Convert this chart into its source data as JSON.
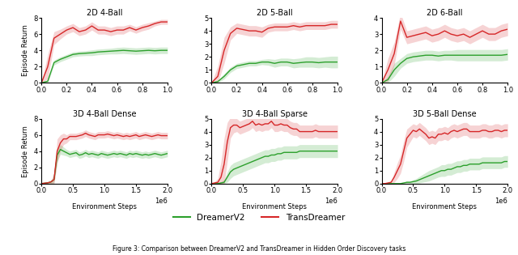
{
  "subplots": [
    {
      "title": "2D 4-Ball",
      "xlim": [
        0.0,
        1000000
      ],
      "ylim": [
        0,
        8
      ],
      "yticks": [
        0,
        2,
        4,
        6,
        8
      ],
      "xticks": [
        0,
        200000,
        400000,
        600000,
        800000,
        1000000
      ],
      "xticklabels": [
        "0.0",
        "0.2",
        "0.4",
        "0.6",
        "0.8",
        "1.0"
      ],
      "xlabel": "",
      "row": 0,
      "col": 0,
      "green_mean": [
        0.0,
        0.2,
        2.5,
        2.9,
        3.2,
        3.5,
        3.6,
        3.65,
        3.7,
        3.8,
        3.85,
        3.9,
        3.95,
        4.0,
        3.95,
        3.9,
        3.95,
        4.0,
        3.95,
        4.0,
        4.0
      ],
      "green_std": [
        0.0,
        0.2,
        0.3,
        0.3,
        0.3,
        0.3,
        0.3,
        0.3,
        0.35,
        0.35,
        0.35,
        0.35,
        0.4,
        0.4,
        0.4,
        0.4,
        0.4,
        0.4,
        0.4,
        0.4,
        0.4
      ],
      "red_mean": [
        0.0,
        2.0,
        5.5,
        6.0,
        6.5,
        6.8,
        6.3,
        6.5,
        7.0,
        6.5,
        6.5,
        6.3,
        6.5,
        6.5,
        6.8,
        6.5,
        6.8,
        7.0,
        7.3,
        7.5,
        7.5
      ],
      "red_std": [
        0.0,
        1.5,
        0.8,
        0.6,
        0.5,
        0.5,
        0.5,
        0.5,
        0.5,
        0.5,
        0.5,
        0.5,
        0.5,
        0.5,
        0.4,
        0.4,
        0.4,
        0.4,
        0.3,
        0.3,
        0.3
      ]
    },
    {
      "title": "2D 5-Ball",
      "xlim": [
        0.0,
        1000000
      ],
      "ylim": [
        0,
        5
      ],
      "yticks": [
        0,
        1,
        2,
        3,
        4,
        5
      ],
      "xticks": [
        0,
        200000,
        400000,
        600000,
        800000,
        1000000
      ],
      "xticklabels": [
        "0.0",
        "0.2",
        "0.4",
        "0.6",
        "0.8",
        "1.0"
      ],
      "xlabel": "",
      "row": 0,
      "col": 1,
      "green_mean": [
        0.0,
        0.1,
        0.5,
        1.0,
        1.3,
        1.4,
        1.5,
        1.5,
        1.6,
        1.6,
        1.5,
        1.6,
        1.6,
        1.5,
        1.55,
        1.6,
        1.6,
        1.55,
        1.6,
        1.6,
        1.6
      ],
      "green_std": [
        0.0,
        0.1,
        0.2,
        0.2,
        0.2,
        0.2,
        0.2,
        0.2,
        0.2,
        0.25,
        0.3,
        0.3,
        0.3,
        0.35,
        0.35,
        0.4,
        0.4,
        0.4,
        0.4,
        0.45,
        0.45
      ],
      "red_mean": [
        0.0,
        0.5,
        2.5,
        3.8,
        4.2,
        4.1,
        4.0,
        4.0,
        3.9,
        4.2,
        4.3,
        4.3,
        4.3,
        4.4,
        4.3,
        4.4,
        4.4,
        4.4,
        4.4,
        4.5,
        4.5
      ],
      "red_std": [
        0.0,
        0.8,
        1.0,
        0.5,
        0.4,
        0.4,
        0.4,
        0.4,
        0.4,
        0.3,
        0.3,
        0.3,
        0.3,
        0.3,
        0.3,
        0.3,
        0.3,
        0.3,
        0.3,
        0.3,
        0.3
      ]
    },
    {
      "title": "2D 6-Ball",
      "xlim": [
        0.0,
        1000000
      ],
      "ylim": [
        0,
        4
      ],
      "yticks": [
        0,
        1,
        2,
        3,
        4
      ],
      "xticks": [
        0,
        200000,
        400000,
        600000,
        800000,
        1000000
      ],
      "xticklabels": [
        "0.0",
        "0.2",
        "0.4",
        "0.6",
        "0.8",
        "1.0"
      ],
      "xlabel": "",
      "row": 0,
      "col": 2,
      "green_mean": [
        0.0,
        0.2,
        0.8,
        1.2,
        1.5,
        1.6,
        1.65,
        1.7,
        1.7,
        1.65,
        1.7,
        1.7,
        1.7,
        1.7,
        1.7,
        1.7,
        1.7,
        1.7,
        1.7,
        1.7,
        1.75
      ],
      "green_std": [
        0.0,
        0.2,
        0.4,
        0.3,
        0.3,
        0.3,
        0.3,
        0.3,
        0.3,
        0.3,
        0.3,
        0.3,
        0.35,
        0.35,
        0.35,
        0.35,
        0.35,
        0.35,
        0.35,
        0.35,
        0.35
      ],
      "red_mean": [
        0.0,
        0.8,
        1.8,
        3.8,
        2.8,
        2.9,
        3.0,
        3.1,
        2.9,
        3.0,
        3.2,
        3.0,
        2.9,
        3.0,
        2.8,
        3.0,
        3.2,
        3.0,
        3.0,
        3.2,
        3.3
      ],
      "red_std": [
        0.0,
        0.7,
        0.7,
        0.5,
        0.4,
        0.4,
        0.4,
        0.4,
        0.4,
        0.4,
        0.4,
        0.4,
        0.4,
        0.4,
        0.4,
        0.4,
        0.4,
        0.4,
        0.4,
        0.4,
        0.4
      ]
    },
    {
      "title": "3D 4-Ball Dense",
      "xlim": [
        0.0,
        2000000
      ],
      "ylim": [
        0,
        8
      ],
      "yticks": [
        0,
        2,
        4,
        6,
        8
      ],
      "xticks": [
        0,
        500000,
        1000000,
        1500000,
        2000000
      ],
      "xticklabels": [
        "0.0",
        "0.5",
        "1.0",
        "1.5",
        "2.0"
      ],
      "xlabel": "Environment Steps",
      "row": 1,
      "col": 0,
      "green_mean": [
        0.0,
        0.05,
        0.1,
        0.2,
        0.5,
        3.5,
        4.2,
        4.0,
        3.8,
        3.6,
        3.7,
        3.8,
        3.5,
        3.6,
        3.8,
        3.6,
        3.7,
        3.6,
        3.5,
        3.7,
        3.6,
        3.5,
        3.6,
        3.7,
        3.6,
        3.7,
        3.6,
        3.5,
        3.7,
        3.6,
        3.7,
        3.6,
        3.5,
        3.6,
        3.5,
        3.6,
        3.7,
        3.6,
        3.5,
        3.6,
        3.7
      ],
      "green_std": [
        0.0,
        0.05,
        0.1,
        0.2,
        0.4,
        0.8,
        0.6,
        0.5,
        0.4,
        0.4,
        0.4,
        0.4,
        0.4,
        0.4,
        0.4,
        0.4,
        0.4,
        0.4,
        0.4,
        0.4,
        0.4,
        0.4,
        0.4,
        0.4,
        0.4,
        0.4,
        0.4,
        0.4,
        0.4,
        0.4,
        0.4,
        0.4,
        0.4,
        0.4,
        0.4,
        0.4,
        0.4,
        0.4,
        0.4,
        0.4,
        0.4
      ],
      "red_mean": [
        0.0,
        0.05,
        0.1,
        0.2,
        0.5,
        4.0,
        5.0,
        5.5,
        5.5,
        5.8,
        5.8,
        5.8,
        5.9,
        6.0,
        6.2,
        6.0,
        5.9,
        5.8,
        6.0,
        6.0,
        6.0,
        6.1,
        6.0,
        5.9,
        6.0,
        5.9,
        5.8,
        5.9,
        5.8,
        5.9,
        6.0,
        5.8,
        5.9,
        6.0,
        5.9,
        5.8,
        5.9,
        6.0,
        5.9,
        5.9,
        5.9
      ],
      "red_std": [
        0.0,
        0.05,
        0.1,
        0.2,
        0.8,
        1.5,
        1.0,
        0.7,
        0.5,
        0.4,
        0.4,
        0.4,
        0.4,
        0.4,
        0.4,
        0.4,
        0.4,
        0.4,
        0.4,
        0.4,
        0.4,
        0.4,
        0.4,
        0.4,
        0.4,
        0.4,
        0.4,
        0.4,
        0.4,
        0.4,
        0.4,
        0.4,
        0.4,
        0.4,
        0.4,
        0.4,
        0.4,
        0.4,
        0.4,
        0.4,
        0.4
      ]
    },
    {
      "title": "3D 4-Ball Sparse",
      "xlim": [
        0.0,
        2000000
      ],
      "ylim": [
        0,
        5
      ],
      "yticks": [
        0,
        1,
        2,
        3,
        4,
        5
      ],
      "xticks": [
        0,
        500000,
        1000000,
        1500000,
        2000000
      ],
      "xticklabels": [
        "0.0",
        "0.5",
        "1.0",
        "1.5",
        "2.0"
      ],
      "xlabel": "Environment Steps",
      "row": 1,
      "col": 1,
      "green_mean": [
        0.0,
        0.0,
        0.0,
        0.05,
        0.1,
        0.5,
        0.9,
        1.1,
        1.2,
        1.3,
        1.4,
        1.5,
        1.6,
        1.7,
        1.8,
        1.9,
        2.0,
        2.1,
        2.1,
        2.2,
        2.2,
        2.3,
        2.3,
        2.4,
        2.4,
        2.4,
        2.4,
        2.4,
        2.5,
        2.5,
        2.5,
        2.5,
        2.5,
        2.5,
        2.5,
        2.5,
        2.5,
        2.5,
        2.5,
        2.5,
        2.5
      ],
      "green_std": [
        0.0,
        0.0,
        0.05,
        0.1,
        0.2,
        0.4,
        0.5,
        0.5,
        0.5,
        0.5,
        0.5,
        0.5,
        0.5,
        0.5,
        0.5,
        0.5,
        0.5,
        0.5,
        0.5,
        0.5,
        0.5,
        0.5,
        0.5,
        0.5,
        0.5,
        0.5,
        0.5,
        0.5,
        0.5,
        0.5,
        0.5,
        0.5,
        0.5,
        0.5,
        0.5,
        0.5,
        0.5,
        0.5,
        0.5,
        0.5,
        0.5
      ],
      "red_mean": [
        0.0,
        0.05,
        0.1,
        0.5,
        1.5,
        3.2,
        4.3,
        4.5,
        4.5,
        4.3,
        4.4,
        4.5,
        4.6,
        4.8,
        4.5,
        4.6,
        4.5,
        4.6,
        4.6,
        4.8,
        4.5,
        4.5,
        4.6,
        4.5,
        4.5,
        4.3,
        4.2,
        4.2,
        4.0,
        4.0,
        4.0,
        4.0,
        4.0,
        4.1,
        4.0,
        4.0,
        4.0,
        4.0,
        4.0,
        4.0,
        4.0
      ],
      "red_std": [
        0.0,
        0.1,
        0.3,
        1.2,
        2.0,
        1.5,
        0.8,
        0.6,
        0.5,
        0.5,
        0.5,
        0.5,
        0.5,
        0.5,
        0.5,
        0.5,
        0.5,
        0.5,
        0.5,
        0.5,
        0.5,
        0.5,
        0.5,
        0.5,
        0.5,
        0.5,
        0.5,
        0.5,
        0.5,
        0.5,
        0.5,
        0.5,
        0.5,
        0.5,
        0.5,
        0.5,
        0.5,
        0.5,
        0.5,
        0.5,
        0.5
      ]
    },
    {
      "title": "3D 5-Ball Dense",
      "xlim": [
        0.0,
        2000000
      ],
      "ylim": [
        0,
        5
      ],
      "yticks": [
        0,
        1,
        2,
        3,
        4,
        5
      ],
      "xticks": [
        0,
        500000,
        1000000,
        1500000,
        2000000
      ],
      "xticklabels": [
        "0.0",
        "0.5",
        "1.0",
        "1.5",
        "2.0"
      ],
      "xlabel": "Environment Steps",
      "row": 1,
      "col": 2,
      "green_mean": [
        0.0,
        0.0,
        0.0,
        0.0,
        0.0,
        0.0,
        0.0,
        0.05,
        0.1,
        0.1,
        0.15,
        0.2,
        0.3,
        0.4,
        0.5,
        0.6,
        0.7,
        0.8,
        0.9,
        1.0,
        1.0,
        1.1,
        1.1,
        1.2,
        1.3,
        1.3,
        1.4,
        1.4,
        1.5,
        1.5,
        1.5,
        1.5,
        1.6,
        1.6,
        1.6,
        1.6,
        1.6,
        1.6,
        1.6,
        1.7,
        1.7
      ],
      "green_std": [
        0.0,
        0.0,
        0.0,
        0.0,
        0.0,
        0.0,
        0.0,
        0.05,
        0.1,
        0.1,
        0.15,
        0.2,
        0.25,
        0.3,
        0.35,
        0.4,
        0.4,
        0.4,
        0.4,
        0.45,
        0.45,
        0.45,
        0.45,
        0.45,
        0.45,
        0.45,
        0.45,
        0.45,
        0.45,
        0.45,
        0.45,
        0.45,
        0.45,
        0.45,
        0.45,
        0.45,
        0.45,
        0.45,
        0.45,
        0.45,
        0.45
      ],
      "red_mean": [
        0.0,
        0.0,
        0.05,
        0.1,
        0.5,
        1.0,
        1.5,
        2.5,
        3.5,
        3.8,
        4.1,
        4.0,
        4.2,
        4.0,
        3.8,
        3.5,
        3.6,
        3.5,
        3.8,
        3.8,
        3.9,
        3.8,
        4.0,
        4.1,
        4.0,
        4.1,
        4.2,
        4.2,
        4.0,
        4.0,
        4.0,
        4.0,
        4.1,
        4.1,
        4.0,
        4.0,
        4.1,
        4.1,
        4.0,
        4.1,
        4.1
      ],
      "red_std": [
        0.0,
        0.0,
        0.05,
        0.1,
        0.4,
        0.6,
        0.7,
        0.8,
        0.7,
        0.6,
        0.5,
        0.5,
        0.5,
        0.5,
        0.5,
        0.5,
        0.5,
        0.5,
        0.5,
        0.5,
        0.5,
        0.5,
        0.5,
        0.5,
        0.5,
        0.5,
        0.5,
        0.5,
        0.5,
        0.5,
        0.5,
        0.5,
        0.5,
        0.5,
        0.5,
        0.5,
        0.5,
        0.5,
        0.5,
        0.5,
        0.5
      ]
    }
  ],
  "green_color": "#2ca02c",
  "red_color": "#d62728",
  "fill_alpha": 0.2,
  "legend_labels": [
    "DreamerV2",
    "TransDreamer"
  ],
  "ylabel": "Episode Return",
  "background_color": "#ffffff",
  "figure_caption": "Figure 3: Comparison between DreamerV2 and TransDreamer in Hidden Order Discovery tasks"
}
